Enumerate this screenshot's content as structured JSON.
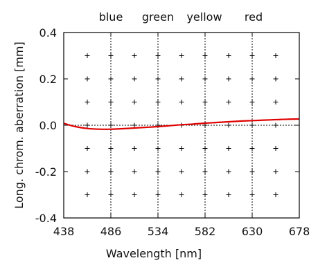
{
  "chart_data": {
    "type": "line",
    "title": "",
    "xlabel": "Wavelength [nm]",
    "ylabel": "Long. chrom. aberration [mm]",
    "xlim": [
      438,
      678
    ],
    "ylim": [
      -0.4,
      0.4
    ],
    "x_ticks": [
      438,
      486,
      534,
      582,
      630,
      678
    ],
    "y_ticks": [
      -0.4,
      -0.2,
      0.0,
      0.2,
      0.4
    ],
    "y_tick_labels": [
      "-0.4",
      "-0.2",
      "0.0",
      "0.2",
      "0.4"
    ],
    "grid": "plus markers at half-tick intersections",
    "color_bands": [
      {
        "label": "blue",
        "x": 486
      },
      {
        "label": "green",
        "x": 534
      },
      {
        "label": "yellow",
        "x": 582
      },
      {
        "label": "red",
        "x": 630
      }
    ],
    "reference_line_y": 0.0,
    "series": [
      {
        "color": "#e00000",
        "x": [
          438,
          450,
          462,
          474,
          486,
          498,
          510,
          522,
          534,
          546,
          558,
          570,
          582,
          594,
          606,
          618,
          630,
          642,
          654,
          666,
          678
        ],
        "y": [
          0.008,
          -0.006,
          -0.014,
          -0.017,
          -0.017,
          -0.015,
          -0.012,
          -0.009,
          -0.006,
          -0.002,
          0.002,
          0.005,
          0.009,
          0.012,
          0.015,
          0.018,
          0.02,
          0.022,
          0.024,
          0.026,
          0.027
        ]
      }
    ]
  }
}
